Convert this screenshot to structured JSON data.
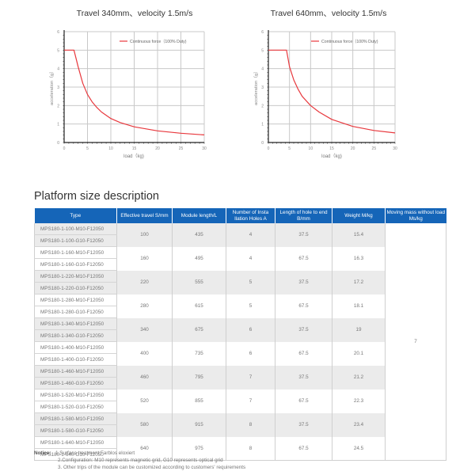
{
  "charts": [
    {
      "title": "Travel 340mm、velocity 1.5m/s",
      "legend": "Continuous force（100% Duty)",
      "xlabel": "load（kg)",
      "ylabel": "acceleration（g）",
      "x_ticks": [
        "0",
        "5",
        "10",
        "15",
        "20",
        "25",
        "30"
      ],
      "y_ticks": [
        "0",
        "1",
        "2",
        "3",
        "4",
        "5",
        "6"
      ]
    },
    {
      "title": "Travel 640mm、velocity 1.5m/s",
      "legend": "Continuous force（100% Duty)",
      "xlabel": "load（kg)",
      "ylabel": "acceleration（g）",
      "x_ticks": [
        "0",
        "5",
        "10",
        "15",
        "20",
        "25",
        "30"
      ],
      "y_ticks": [
        "0",
        "1",
        "2",
        "3",
        "4",
        "5",
        "6"
      ]
    }
  ],
  "chart_data": [
    {
      "type": "line",
      "title": "Travel 340mm、velocity 1.5m/s",
      "xlabel": "load (kg)",
      "ylabel": "acceleration (g)",
      "xlim": [
        0,
        30
      ],
      "ylim": [
        0,
        6
      ],
      "grid": true,
      "legend_position": "upper right",
      "series": [
        {
          "name": "Continuous force (100% Duty)",
          "color": "#e8383d",
          "x": [
            0,
            2.1,
            2.5,
            3,
            4,
            5,
            6,
            7,
            8,
            10,
            12,
            15,
            20,
            25,
            30
          ],
          "y": [
            5,
            5,
            4.6,
            4.1,
            3.2,
            2.6,
            2.2,
            1.9,
            1.65,
            1.3,
            1.08,
            0.85,
            0.63,
            0.5,
            0.41
          ]
        }
      ]
    },
    {
      "type": "line",
      "title": "Travel 640mm、velocity 1.5m/s",
      "xlabel": "load (kg)",
      "ylabel": "acceleration (g)",
      "xlim": [
        0,
        30
      ],
      "ylim": [
        0,
        6
      ],
      "grid": true,
      "legend_position": "upper right",
      "series": [
        {
          "name": "Continuous force (100% Duty)",
          "color": "#e8383d",
          "x": [
            0,
            4.3,
            5,
            6,
            7,
            8,
            10,
            12,
            15,
            20,
            25,
            30
          ],
          "y": [
            5,
            5,
            4.1,
            3.4,
            2.9,
            2.5,
            2.0,
            1.65,
            1.25,
            0.87,
            0.65,
            0.52
          ]
        }
      ]
    }
  ],
  "section_title": "Platform size description",
  "table": {
    "headers": [
      "Type",
      "Effective travel S/mm",
      "Module length/L",
      "Number of Insta llation Holes A",
      "Length of hole to end B/mm",
      "Weight M/kg",
      "Moving mass without load Ms/kg"
    ],
    "header_color": "#1565b8",
    "moving_mass": "7",
    "rows": [
      {
        "types": [
          "MPS180-1-100-M10-F12050",
          "MPS180-1-100-G10-F12050"
        ],
        "travel": "100",
        "length": "435",
        "holes": "4",
        "hole_end": "37.5",
        "weight": "15.4"
      },
      {
        "types": [
          "MPS180-1-160-M10-F12050",
          "MPS180-1-160-G10-F12050"
        ],
        "travel": "160",
        "length": "495",
        "holes": "4",
        "hole_end": "67.5",
        "weight": "16.3"
      },
      {
        "types": [
          "MPS180-1-220-M10-F12050",
          "MPS180-1-220-G10-F12050"
        ],
        "travel": "220",
        "length": "555",
        "holes": "5",
        "hole_end": "37.5",
        "weight": "17.2"
      },
      {
        "types": [
          "MPS180-1-280-M10-F12050",
          "MPS180-1-280-G10-F12050"
        ],
        "travel": "280",
        "length": "615",
        "holes": "5",
        "hole_end": "67.5",
        "weight": "18.1"
      },
      {
        "types": [
          "MPS180-1-340-M10-F12050",
          "MPS180-1-340-G10-F12050"
        ],
        "travel": "340",
        "length": "675",
        "holes": "6",
        "hole_end": "37.5",
        "weight": "19"
      },
      {
        "types": [
          "MPS180-1-400-M10-F12050",
          "MPS180-1-400-G10-F12050"
        ],
        "travel": "400",
        "length": "735",
        "holes": "6",
        "hole_end": "67.5",
        "weight": "20.1"
      },
      {
        "types": [
          "MPS180-1-460-M10-F12050",
          "MPS180-1-460-G10-F12050"
        ],
        "travel": "460",
        "length": "795",
        "holes": "7",
        "hole_end": "37.5",
        "weight": "21.2"
      },
      {
        "types": [
          "MPS180-1-520-M10-F12050",
          "MPS180-1-520-G10-F12050"
        ],
        "travel": "520",
        "length": "855",
        "holes": "7",
        "hole_end": "67.5",
        "weight": "22.3"
      },
      {
        "types": [
          "MPS180-1-580-M10-F12050",
          "MPS180-1-580-G10-F12050"
        ],
        "travel": "580",
        "length": "915",
        "holes": "8",
        "hole_end": "37.5",
        "weight": "23.4"
      },
      {
        "types": [
          "MPS180-1-640-M10-F12050",
          "MPS180-1-640-G10-F12050"
        ],
        "travel": "640",
        "length": "975",
        "holes": "8",
        "hole_end": "67.5",
        "weight": "24.5"
      }
    ]
  },
  "notice": {
    "label": "Notice:",
    "lines": [
      "1.Surface treatment:Farblos eloxiert",
      "2.Configuration: M10 represents magnetic grid, G10 represents optical grid",
      "3. Other trips of the module can be customized according to customers' requirements"
    ]
  }
}
